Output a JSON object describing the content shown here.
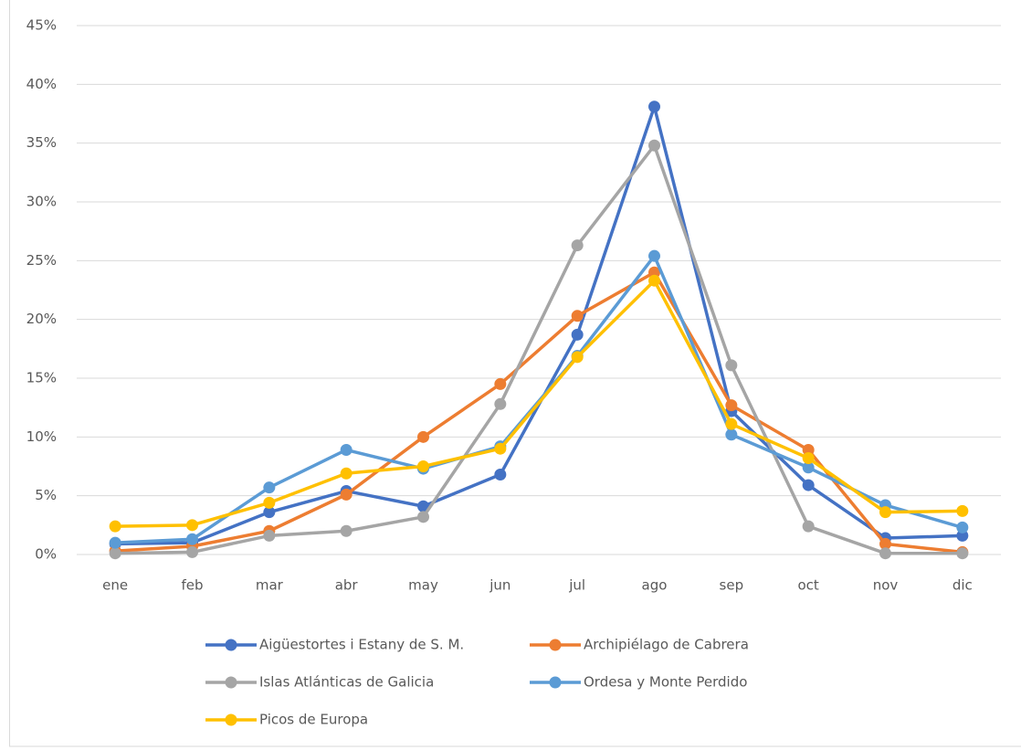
{
  "chart_data": {
    "type": "line",
    "categories": [
      "ene",
      "feb",
      "mar",
      "abr",
      "may",
      "jun",
      "jul",
      "ago",
      "sep",
      "oct",
      "nov",
      "dic"
    ],
    "series": [
      {
        "name": "Aigüestortes i Estany de S. M.",
        "color": "#4472c4",
        "values": [
          0.9,
          1.0,
          3.6,
          5.4,
          4.1,
          6.8,
          18.7,
          38.1,
          12.2,
          5.9,
          1.4,
          1.6
        ]
      },
      {
        "name": "Archipiélago de Cabrera",
        "color": "#ed7d31",
        "values": [
          0.3,
          0.7,
          2.0,
          5.1,
          10.0,
          14.5,
          20.3,
          24.0,
          12.7,
          8.9,
          0.9,
          0.2
        ]
      },
      {
        "name": "Islas Atlánticas de Galicia",
        "color": "#a5a5a5",
        "values": [
          0.1,
          0.2,
          1.6,
          2.0,
          3.2,
          12.8,
          26.3,
          34.8,
          16.1,
          2.4,
          0.1,
          0.1
        ]
      },
      {
        "name": "Ordesa y Monte Perdido",
        "color": "#5b9bd5",
        "values": [
          1.0,
          1.3,
          5.7,
          8.9,
          7.3,
          9.2,
          16.9,
          25.4,
          10.2,
          7.4,
          4.2,
          2.3
        ]
      },
      {
        "name": "Picos de Europa",
        "color": "#ffc000",
        "values": [
          2.4,
          2.5,
          4.4,
          6.9,
          7.5,
          9.0,
          16.8,
          23.3,
          11.1,
          8.2,
          3.6,
          3.7
        ]
      }
    ],
    "ylim": [
      0,
      45
    ],
    "yticks": [
      {
        "value": 0,
        "label": "0%"
      },
      {
        "value": 5,
        "label": "5%"
      },
      {
        "value": 10,
        "label": "10%"
      },
      {
        "value": 15,
        "label": "15%"
      },
      {
        "value": 20,
        "label": "20%"
      },
      {
        "value": 25,
        "label": "25%"
      },
      {
        "value": 30,
        "label": "30%"
      },
      {
        "value": 35,
        "label": "35%"
      },
      {
        "value": 40,
        "label": "40%"
      },
      {
        "value": 45,
        "label": "45%"
      }
    ],
    "grid": true,
    "legend": "bottom"
  }
}
